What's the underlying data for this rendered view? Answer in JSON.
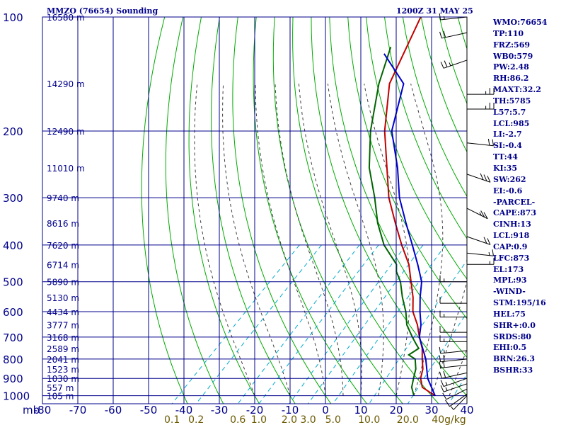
{
  "station_title": "MMZO (76654) Sounding",
  "time_title": "1200Z 31 MAY 25",
  "panel": [
    "WMO:76654",
    "TP:110",
    "FRZ:569",
    "WB0:579",
    "PW:2.48",
    "RH:86.2",
    "MAXT:32.2",
    "TH:5785",
    "L57:5.7",
    "LCL:985",
    "LI:-2.7",
    "SI:-0.4",
    "TT:44",
    "KI:35",
    "SW:262",
    "EI:-0.6",
    "-PARCEL-",
    "CAPE:873",
    "CINH:13",
    "LCL:918",
    "CAP:0.9",
    "LFC:873",
    "EL:173",
    "MPL:93",
    "-WIND-",
    "STM:195/16",
    "HEL:75",
    "SHR+:0.0",
    "SRDS:80",
    "EHI:0.5",
    "BRN:26.3",
    "BSHR:33"
  ],
  "colors": {
    "grid": "#00008b",
    "dry_adiabat": "#00aa00",
    "moist_adiabat": "#404040",
    "mixing_ratio": "#00aacc",
    "temperature": "#c00000",
    "dewpoint": "#006400",
    "parcel": "#0000cc",
    "label": "#00008b",
    "mixing_label": "#6b5a00"
  },
  "chart_data": {
    "type": "line",
    "title": "",
    "axis_unit_label": "mb",
    "pressure_levels": [
      100,
      200,
      300,
      400,
      500,
      600,
      700,
      800,
      900,
      1000
    ],
    "temperature_ticks": [
      "-80",
      "-70",
      "-60",
      "-50",
      "-40",
      "-30",
      "-20",
      "-10",
      "0",
      "10",
      "20",
      "30",
      "40"
    ],
    "temperature_range": [
      -80,
      40
    ],
    "pressure_range": [
      100,
      1050
    ],
    "height_labels": [
      {
        "p": 100,
        "text": "16580 m"
      },
      {
        "p": 150,
        "text": "14290 m"
      },
      {
        "p": 200,
        "text": "12490 m"
      },
      {
        "p": 250,
        "text": "11010 m"
      },
      {
        "p": 300,
        "text": "9740 m"
      },
      {
        "p": 350,
        "text": "8616 m"
      },
      {
        "p": 400,
        "text": "7620 m"
      },
      {
        "p": 450,
        "text": "6714 m"
      },
      {
        "p": 500,
        "text": "5890 m"
      },
      {
        "p": 550,
        "text": "5130 m"
      },
      {
        "p": 600,
        "text": "4434 m"
      },
      {
        "p": 650,
        "text": "3777 m"
      },
      {
        "p": 700,
        "text": "3168 m"
      },
      {
        "p": 750,
        "text": "2589 m"
      },
      {
        "p": 800,
        "text": "2041 m"
      },
      {
        "p": 850,
        "text": "1523 m"
      },
      {
        "p": 900,
        "text": "1030 m"
      },
      {
        "p": 950,
        "text": "557 m"
      },
      {
        "p": 1000,
        "text": "105 m"
      }
    ],
    "mixing_ratio_labels": [
      "0.1",
      "0.2",
      "0.6",
      "1.0",
      "2.0",
      "3.0",
      "5.0",
      "10.0",
      "20.0",
      "40g/kg"
    ],
    "mixing_ratio_values": [
      0.1,
      0.2,
      0.6,
      1.0,
      2.0,
      3.0,
      5.0,
      10.0,
      20.0,
      40.0
    ],
    "series": [
      {
        "key": "temperature",
        "points": [
          [
            100,
            -80
          ],
          [
            150,
            -70
          ],
          [
            200,
            -58
          ],
          [
            250,
            -47
          ],
          [
            300,
            -38
          ],
          [
            350,
            -29
          ],
          [
            400,
            -21
          ],
          [
            450,
            -13.5
          ],
          [
            500,
            -8
          ],
          [
            550,
            -3
          ],
          [
            600,
            1
          ],
          [
            650,
            6
          ],
          [
            700,
            10
          ],
          [
            750,
            14
          ],
          [
            800,
            17
          ],
          [
            850,
            20
          ],
          [
            900,
            22
          ],
          [
            950,
            25
          ],
          [
            1000,
            31
          ]
        ]
      },
      {
        "key": "dewpoint",
        "points": [
          [
            120,
            -80
          ],
          [
            150,
            -73
          ],
          [
            200,
            -62
          ],
          [
            250,
            -52
          ],
          [
            300,
            -42
          ],
          [
            350,
            -34
          ],
          [
            400,
            -26
          ],
          [
            450,
            -17
          ],
          [
            470,
            -15
          ],
          [
            500,
            -11
          ],
          [
            550,
            -6
          ],
          [
            600,
            -1
          ],
          [
            650,
            3
          ],
          [
            700,
            8
          ],
          [
            730,
            11
          ],
          [
            750,
            13
          ],
          [
            780,
            12
          ],
          [
            800,
            15
          ],
          [
            850,
            18
          ],
          [
            900,
            20
          ],
          [
            950,
            22
          ],
          [
            1000,
            25
          ]
        ]
      },
      {
        "key": "parcel",
        "points": [
          [
            125,
            -80
          ],
          [
            150,
            -66
          ],
          [
            200,
            -56
          ],
          [
            250,
            -44
          ],
          [
            300,
            -35
          ],
          [
            350,
            -26
          ],
          [
            400,
            -18
          ],
          [
            450,
            -11
          ],
          [
            500,
            -5
          ],
          [
            550,
            -1
          ],
          [
            600,
            3
          ],
          [
            650,
            7
          ],
          [
            700,
            10
          ],
          [
            800,
            18
          ],
          [
            900,
            24
          ],
          [
            1000,
            31
          ]
        ]
      }
    ],
    "wind_barbs": [
      {
        "p": 100,
        "dir": 80,
        "kt": 15
      },
      {
        "p": 110,
        "dir": 70,
        "kt": 20
      },
      {
        "p": 130,
        "dir": 60,
        "kt": 25
      },
      {
        "p": 160,
        "dir": 270,
        "kt": 25
      },
      {
        "p": 175,
        "dir": 270,
        "kt": 25
      },
      {
        "p": 215,
        "dir": 280,
        "kt": 20
      },
      {
        "p": 260,
        "dir": 300,
        "kt": 30
      },
      {
        "p": 320,
        "dir": 310,
        "kt": 25
      },
      {
        "p": 380,
        "dir": 300,
        "kt": 20
      },
      {
        "p": 420,
        "dir": 280,
        "kt": 15
      },
      {
        "p": 450,
        "dir": 270,
        "kt": 15
      },
      {
        "p": 500,
        "dir": 90,
        "kt": 15
      },
      {
        "p": 570,
        "dir": 90,
        "kt": 10
      },
      {
        "p": 620,
        "dir": 90,
        "kt": 15
      },
      {
        "p": 680,
        "dir": 90,
        "kt": 15
      },
      {
        "p": 720,
        "dir": 90,
        "kt": 15
      },
      {
        "p": 760,
        "dir": 80,
        "kt": 15
      },
      {
        "p": 800,
        "dir": 80,
        "kt": 20
      },
      {
        "p": 830,
        "dir": 80,
        "kt": 20
      },
      {
        "p": 870,
        "dir": 70,
        "kt": 20
      },
      {
        "p": 900,
        "dir": 60,
        "kt": 15
      },
      {
        "p": 930,
        "dir": 60,
        "kt": 15
      },
      {
        "p": 960,
        "dir": 50,
        "kt": 10
      },
      {
        "p": 990,
        "dir": 40,
        "kt": 10
      },
      {
        "p": 1000,
        "dir": 30,
        "kt": 5
      }
    ]
  }
}
